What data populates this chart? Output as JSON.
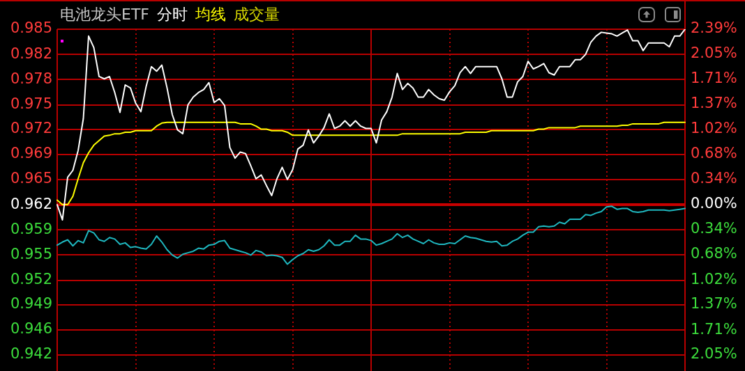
{
  "chart_data": {
    "type": "line",
    "title": "电池龙头ETF",
    "categories": [
      null,
      null,
      null,
      null,
      null,
      null,
      null,
      null,
      null,
      null,
      null,
      null,
      null,
      null,
      null,
      null,
      null,
      null,
      null,
      null,
      null,
      null,
      null,
      null,
      null,
      null,
      null,
      null,
      null,
      null,
      null,
      null,
      null,
      null,
      null,
      null,
      null,
      null,
      null,
      null,
      null,
      null,
      null,
      null,
      null,
      null,
      null,
      null,
      null,
      null,
      null,
      null,
      null,
      null,
      null,
      null,
      null,
      null,
      null,
      null,
      null,
      null,
      null,
      null,
      null,
      null,
      null,
      null,
      null,
      null,
      null,
      null,
      null,
      null,
      null,
      null,
      null,
      null,
      null,
      null,
      null,
      null,
      null,
      null,
      null,
      null,
      null,
      null,
      null,
      null,
      null,
      null,
      null,
      null,
      null,
      null,
      null,
      null,
      null,
      null,
      null,
      null,
      null,
      null,
      null,
      null,
      null,
      null,
      null,
      null,
      null,
      null,
      null,
      null,
      null,
      null,
      null,
      null,
      null,
      null,
      null
    ],
    "series": [
      {
        "name": "分时",
        "color": "#ffffff",
        "values": [
          0.962,
          0.96,
          0.9656,
          0.9665,
          0.9691,
          0.9733,
          0.9841,
          0.9826,
          0.9788,
          0.9785,
          0.9788,
          0.9767,
          0.9741,
          0.9777,
          0.9773,
          0.9753,
          0.9742,
          0.9775,
          0.9801,
          0.9795,
          0.9803,
          0.9773,
          0.9738,
          0.9718,
          0.9713,
          0.9751,
          0.9761,
          0.9767,
          0.9771,
          0.978,
          0.9754,
          0.9759,
          0.975,
          0.9695,
          0.9681,
          0.9689,
          0.9687,
          0.9671,
          0.9654,
          0.9659,
          0.9645,
          0.9632,
          0.9654,
          0.9669,
          0.9653,
          0.9666,
          0.9693,
          0.9698,
          0.9718,
          0.9701,
          0.971,
          0.9721,
          0.9739,
          0.972,
          0.9723,
          0.973,
          0.9723,
          0.973,
          0.9723,
          0.972,
          0.972,
          0.9701,
          0.9731,
          0.9742,
          0.9761,
          0.9792,
          0.9771,
          0.9779,
          0.9773,
          0.9761,
          0.9761,
          0.9771,
          0.9764,
          0.9759,
          0.9757,
          0.9768,
          0.9776,
          0.9793,
          0.9801,
          0.9792,
          0.9801,
          0.9801,
          0.9801,
          0.9801,
          0.9801,
          0.9785,
          0.9761,
          0.9761,
          0.9781,
          0.9788,
          0.9808,
          0.9798,
          0.9801,
          0.9805,
          0.9793,
          0.979,
          0.9801,
          0.9801,
          0.9801,
          0.981,
          0.981,
          0.9817,
          0.9833,
          0.9841,
          0.9846,
          0.9845,
          0.9844,
          0.9841,
          0.9845,
          0.9849,
          0.9835,
          0.9835,
          0.9822,
          0.9832,
          0.9832,
          0.9832,
          0.9832,
          0.9827,
          0.9841,
          0.9841,
          0.985
        ]
      },
      {
        "name": "均线",
        "color": "#ffff00",
        "values": [
          0.9626,
          0.962,
          0.962,
          0.9631,
          0.9654,
          0.9675,
          0.9688,
          0.9698,
          0.9704,
          0.971,
          0.9711,
          0.9713,
          0.9713,
          0.9715,
          0.9715,
          0.9717,
          0.9717,
          0.9717,
          0.9717,
          0.9723,
          0.9727,
          0.9728,
          0.9728,
          0.9728,
          0.9728,
          0.9728,
          0.9728,
          0.9728,
          0.9728,
          0.9728,
          0.9728,
          0.9728,
          0.9728,
          0.9728,
          0.9728,
          0.9726,
          0.9726,
          0.9726,
          0.9723,
          0.9719,
          0.9719,
          0.9717,
          0.9717,
          0.9717,
          0.9715,
          0.9711,
          0.9711,
          0.9711,
          0.9711,
          0.9711,
          0.9711,
          0.9711,
          0.9711,
          0.9711,
          0.9711,
          0.9711,
          0.9711,
          0.9711,
          0.9711,
          0.9711,
          0.9711,
          0.9711,
          0.9711,
          0.9711,
          0.9711,
          0.9711,
          0.9713,
          0.9713,
          0.9713,
          0.9713,
          0.9713,
          0.9713,
          0.9713,
          0.9713,
          0.9713,
          0.9713,
          0.9713,
          0.9713,
          0.9715,
          0.9715,
          0.9715,
          0.9715,
          0.9715,
          0.9717,
          0.9717,
          0.9717,
          0.9717,
          0.9717,
          0.9717,
          0.9717,
          0.9717,
          0.9717,
          0.9719,
          0.9719,
          0.9721,
          0.9721,
          0.9721,
          0.9721,
          0.9721,
          0.9721,
          0.9723,
          0.9723,
          0.9723,
          0.9723,
          0.9723,
          0.9723,
          0.9723,
          0.9723,
          0.9724,
          0.9724,
          0.9726,
          0.9726,
          0.9726,
          0.9726,
          0.9726,
          0.9726,
          0.9728,
          0.9728,
          0.9728,
          0.9728,
          0.9728
        ]
      },
      {
        "color": "#1fb8c0",
        "values": [
          0.9567,
          0.9571,
          0.9574,
          0.9566,
          0.9573,
          0.957,
          0.9586,
          0.9583,
          0.9574,
          0.9572,
          0.9577,
          0.9575,
          0.9568,
          0.957,
          0.9564,
          0.9565,
          0.9563,
          0.9562,
          0.9568,
          0.9579,
          0.9571,
          0.9561,
          0.9554,
          0.955,
          0.9555,
          0.9557,
          0.9559,
          0.9563,
          0.9562,
          0.9567,
          0.9568,
          0.9572,
          0.9573,
          0.9563,
          0.9561,
          0.9559,
          0.9557,
          0.9554,
          0.956,
          0.9558,
          0.9553,
          0.9554,
          0.9553,
          0.9551,
          0.9542,
          0.9548,
          0.9553,
          0.9556,
          0.9561,
          0.9559,
          0.9561,
          0.9566,
          0.9574,
          0.9567,
          0.9567,
          0.9572,
          0.9572,
          0.958,
          0.9575,
          0.9575,
          0.9573,
          0.9567,
          0.9569,
          0.9572,
          0.9575,
          0.9582,
          0.9577,
          0.958,
          0.9575,
          0.9572,
          0.9569,
          0.9574,
          0.957,
          0.9568,
          0.9568,
          0.957,
          0.9569,
          0.9574,
          0.9579,
          0.9577,
          0.9576,
          0.9574,
          0.9572,
          0.9571,
          0.9572,
          0.9566,
          0.9567,
          0.9572,
          0.9575,
          0.958,
          0.9584,
          0.9584,
          0.9591,
          0.9592,
          0.9591,
          0.9592,
          0.9597,
          0.9595,
          0.9601,
          0.9601,
          0.9601,
          0.9607,
          0.9606,
          0.9609,
          0.9611,
          0.9617,
          0.9618,
          0.9614,
          0.9615,
          0.9615,
          0.9611,
          0.961,
          0.9611,
          0.9613,
          0.9613,
          0.9613,
          0.9613,
          0.9612,
          0.9613,
          0.9614,
          0.9615
        ]
      }
    ],
    "ylim": [
      0.9402,
      0.985
    ],
    "yticks": [
      0.985,
      {
        "value": 0.9817,
        "label": "0.982"
      },
      {
        "value": 0.9784,
        "label": "0.978"
      },
      {
        "value": 0.9751,
        "label": "0.975"
      },
      {
        "value": 0.9719,
        "label": "0.972"
      },
      {
        "value": 0.9686,
        "label": "0.969"
      },
      {
        "value": 0.9653,
        "label": "0.965"
      },
      0.962,
      {
        "value": 0.9587,
        "label": "0.959"
      },
      {
        "value": 0.9554,
        "label": "0.955"
      },
      {
        "value": 0.9521,
        "label": "0.952"
      },
      {
        "value": 0.9489,
        "label": "0.949"
      },
      {
        "value": 0.9456,
        "label": "0.946"
      },
      {
        "value": 0.9423,
        "label": "0.942"
      }
    ],
    "y2lim": [
      -2.267,
      2.39
    ],
    "y2ticks": [
      {
        "value": 2.39,
        "label": "2.39%"
      },
      {
        "value": 2.049,
        "label": "2.05%"
      },
      {
        "value": 1.708,
        "label": "1.71%"
      },
      {
        "value": 1.366,
        "label": "1.37%"
      },
      {
        "value": 1.025,
        "label": "1.02%"
      },
      {
        "value": 0.683,
        "label": "0.68%"
      },
      {
        "value": 0.342,
        "label": "0.34%"
      },
      {
        "value": 0,
        "label": "0.00%"
      },
      {
        "value": -0.342,
        "label": "0.34%"
      },
      {
        "value": -0.683,
        "label": "0.68%"
      },
      {
        "value": -1.025,
        "label": "1.02%"
      },
      {
        "value": -1.366,
        "label": "1.37%"
      },
      {
        "value": -1.708,
        "label": "1.71%"
      },
      {
        "value": -2.049,
        "label": "2.05%"
      }
    ],
    "ref_lines": [
      {
        "axis": "y",
        "value": 0.962,
        "color": "#c80000"
      }
    ],
    "annotations": [
      "成交量"
    ],
    "grid": true,
    "legend": "top left",
    "marker": "none"
  }
}
